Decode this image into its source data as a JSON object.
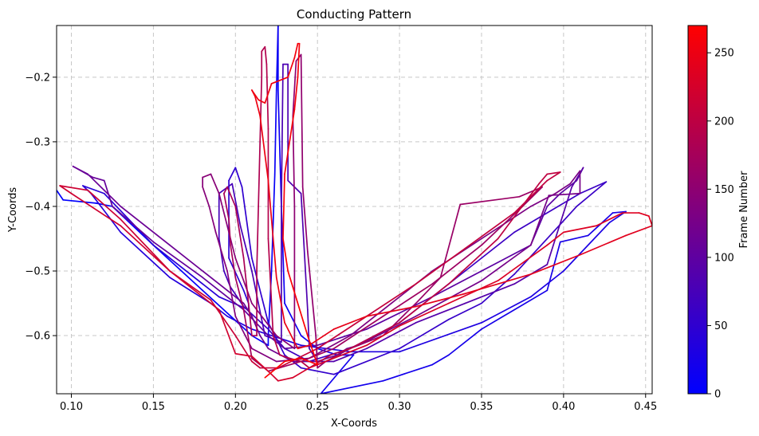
{
  "chart_data": {
    "type": "line",
    "title": "Conducting Pattern",
    "xlabel": "X-Coords",
    "ylabel": "Y-Coords",
    "xlim": [
      0.091,
      0.454
    ],
    "ylim": [
      -0.69,
      -0.12
    ],
    "xticks": [
      0.1,
      0.15,
      0.2,
      0.25,
      0.3,
      0.35,
      0.4,
      0.45
    ],
    "xtick_labels": [
      "0.10",
      "0.15",
      "0.20",
      "0.25",
      "0.30",
      "0.35",
      "0.40",
      "0.45"
    ],
    "yticks": [
      -0.2,
      -0.3,
      -0.4,
      -0.5,
      -0.6
    ],
    "ytick_labels": [
      "−0.2",
      "−0.3",
      "−0.4",
      "−0.5",
      "−0.6"
    ],
    "grid": true,
    "colorbar": {
      "label": "Frame Number",
      "range": [
        0,
        270
      ],
      "ticks": [
        0,
        50,
        100,
        150,
        200,
        250
      ],
      "tick_labels": [
        "0",
        "50",
        "100",
        "150",
        "200",
        "250"
      ],
      "color_low": "#0000ff",
      "color_high": "#ff0000"
    },
    "points": [
      [
        0.091,
        -0.375
      ],
      [
        0.095,
        -0.39
      ],
      [
        0.115,
        -0.395
      ],
      [
        0.125,
        -0.4
      ],
      [
        0.15,
        -0.46
      ],
      [
        0.18,
        -0.53
      ],
      [
        0.21,
        -0.6
      ],
      [
        0.22,
        -0.615
      ],
      [
        0.22,
        -0.6
      ],
      [
        0.222,
        -0.5
      ],
      [
        0.224,
        -0.35
      ],
      [
        0.225,
        -0.22
      ],
      [
        0.226,
        -0.12
      ],
      [
        0.226,
        -0.22
      ],
      [
        0.228,
        -0.4
      ],
      [
        0.23,
        -0.55
      ],
      [
        0.24,
        -0.6
      ],
      [
        0.25,
        -0.62
      ],
      [
        0.262,
        -0.63
      ],
      [
        0.272,
        -0.63
      ],
      [
        0.252,
        -0.69
      ],
      [
        0.29,
        -0.67
      ],
      [
        0.32,
        -0.645
      ],
      [
        0.33,
        -0.63
      ],
      [
        0.35,
        -0.59
      ],
      [
        0.39,
        -0.53
      ],
      [
        0.398,
        -0.455
      ],
      [
        0.415,
        -0.445
      ],
      [
        0.43,
        -0.41
      ],
      [
        0.438,
        -0.408
      ],
      [
        0.428,
        -0.425
      ],
      [
        0.4,
        -0.5
      ],
      [
        0.38,
        -0.54
      ],
      [
        0.35,
        -0.58
      ],
      [
        0.3,
        -0.625
      ],
      [
        0.27,
        -0.625
      ],
      [
        0.24,
        -0.615
      ],
      [
        0.21,
        -0.59
      ],
      [
        0.195,
        -0.57
      ],
      [
        0.185,
        -0.55
      ],
      [
        0.16,
        -0.51
      ],
      [
        0.13,
        -0.44
      ],
      [
        0.112,
        -0.38
      ],
      [
        0.107,
        -0.368
      ],
      [
        0.12,
        -0.38
      ],
      [
        0.15,
        -0.46
      ],
      [
        0.19,
        -0.54
      ],
      [
        0.208,
        -0.56
      ],
      [
        0.208,
        -0.55
      ],
      [
        0.205,
        -0.53
      ],
      [
        0.196,
        -0.48
      ],
      [
        0.196,
        -0.36
      ],
      [
        0.2,
        -0.34
      ],
      [
        0.204,
        -0.37
      ],
      [
        0.21,
        -0.48
      ],
      [
        0.22,
        -0.58
      ],
      [
        0.23,
        -0.63
      ],
      [
        0.24,
        -0.65
      ],
      [
        0.26,
        -0.66
      ],
      [
        0.3,
        -0.62
      ],
      [
        0.33,
        -0.575
      ],
      [
        0.35,
        -0.55
      ],
      [
        0.37,
        -0.505
      ],
      [
        0.39,
        -0.45
      ],
      [
        0.408,
        -0.4
      ],
      [
        0.426,
        -0.362
      ],
      [
        0.41,
        -0.38
      ],
      [
        0.37,
        -0.44
      ],
      [
        0.34,
        -0.5
      ],
      [
        0.3,
        -0.58
      ],
      [
        0.27,
        -0.62
      ],
      [
        0.245,
        -0.64
      ],
      [
        0.23,
        -0.62
      ],
      [
        0.22,
        -0.59
      ],
      [
        0.205,
        -0.555
      ],
      [
        0.197,
        -0.525
      ],
      [
        0.193,
        -0.5
      ],
      [
        0.19,
        -0.45
      ],
      [
        0.19,
        -0.38
      ],
      [
        0.198,
        -0.365
      ],
      [
        0.203,
        -0.43
      ],
      [
        0.21,
        -0.5
      ],
      [
        0.218,
        -0.6
      ],
      [
        0.228,
        -0.61
      ],
      [
        0.228,
        -0.4
      ],
      [
        0.229,
        -0.18
      ],
      [
        0.232,
        -0.18
      ],
      [
        0.232,
        -0.36
      ],
      [
        0.24,
        -0.38
      ],
      [
        0.244,
        -0.56
      ],
      [
        0.245,
        -0.62
      ],
      [
        0.25,
        -0.64
      ],
      [
        0.26,
        -0.64
      ],
      [
        0.28,
        -0.62
      ],
      [
        0.31,
        -0.58
      ],
      [
        0.34,
        -0.55
      ],
      [
        0.37,
        -0.52
      ],
      [
        0.39,
        -0.49
      ],
      [
        0.405,
        -0.37
      ],
      [
        0.412,
        -0.34
      ],
      [
        0.408,
        -0.36
      ],
      [
        0.398,
        -0.38
      ],
      [
        0.39,
        -0.4
      ],
      [
        0.38,
        -0.46
      ],
      [
        0.35,
        -0.5
      ],
      [
        0.32,
        -0.54
      ],
      [
        0.28,
        -0.59
      ],
      [
        0.25,
        -0.615
      ],
      [
        0.23,
        -0.62
      ],
      [
        0.22,
        -0.6
      ],
      [
        0.205,
        -0.56
      ],
      [
        0.18,
        -0.51
      ],
      [
        0.15,
        -0.455
      ],
      [
        0.125,
        -0.4
      ],
      [
        0.12,
        -0.36
      ],
      [
        0.113,
        -0.355
      ],
      [
        0.101,
        -0.338
      ],
      [
        0.11,
        -0.35
      ],
      [
        0.13,
        -0.4
      ],
      [
        0.16,
        -0.46
      ],
      [
        0.19,
        -0.52
      ],
      [
        0.205,
        -0.55
      ],
      [
        0.21,
        -0.57
      ],
      [
        0.215,
        -0.6
      ],
      [
        0.22,
        -0.62
      ],
      [
        0.235,
        -0.64
      ],
      [
        0.25,
        -0.64
      ],
      [
        0.262,
        -0.63
      ],
      [
        0.268,
        -0.62
      ],
      [
        0.275,
        -0.615
      ],
      [
        0.31,
        -0.57
      ],
      [
        0.35,
        -0.515
      ],
      [
        0.38,
        -0.46
      ],
      [
        0.391,
        -0.383
      ],
      [
        0.41,
        -0.38
      ],
      [
        0.41,
        -0.345
      ],
      [
        0.404,
        -0.365
      ],
      [
        0.395,
        -0.38
      ],
      [
        0.38,
        -0.4
      ],
      [
        0.35,
        -0.45
      ],
      [
        0.32,
        -0.5
      ],
      [
        0.295,
        -0.55
      ],
      [
        0.27,
        -0.6
      ],
      [
        0.245,
        -0.635
      ],
      [
        0.225,
        -0.64
      ],
      [
        0.21,
        -0.62
      ],
      [
        0.2,
        -0.57
      ],
      [
        0.195,
        -0.5
      ],
      [
        0.188,
        -0.44
      ],
      [
        0.184,
        -0.4
      ],
      [
        0.18,
        -0.37
      ],
      [
        0.18,
        -0.355
      ],
      [
        0.185,
        -0.35
      ],
      [
        0.19,
        -0.38
      ],
      [
        0.2,
        -0.48
      ],
      [
        0.21,
        -0.55
      ],
      [
        0.225,
        -0.6
      ],
      [
        0.236,
        -0.62
      ],
      [
        0.236,
        -0.4
      ],
      [
        0.235,
        -0.26
      ],
      [
        0.237,
        -0.175
      ],
      [
        0.24,
        -0.165
      ],
      [
        0.241,
        -0.37
      ],
      [
        0.244,
        -0.47
      ],
      [
        0.249,
        -0.6
      ],
      [
        0.25,
        -0.65
      ],
      [
        0.255,
        -0.64
      ],
      [
        0.27,
        -0.62
      ],
      [
        0.29,
        -0.6
      ],
      [
        0.31,
        -0.55
      ],
      [
        0.325,
        -0.51
      ],
      [
        0.337,
        -0.397
      ],
      [
        0.373,
        -0.385
      ],
      [
        0.387,
        -0.37
      ],
      [
        0.375,
        -0.4
      ],
      [
        0.35,
        -0.46
      ],
      [
        0.32,
        -0.52
      ],
      [
        0.29,
        -0.57
      ],
      [
        0.26,
        -0.62
      ],
      [
        0.24,
        -0.64
      ],
      [
        0.22,
        -0.655
      ],
      [
        0.21,
        -0.635
      ],
      [
        0.205,
        -0.56
      ],
      [
        0.2,
        -0.51
      ],
      [
        0.197,
        -0.46
      ],
      [
        0.196,
        -0.42
      ],
      [
        0.193,
        -0.38
      ],
      [
        0.195,
        -0.37
      ],
      [
        0.2,
        -0.4
      ],
      [
        0.205,
        -0.48
      ],
      [
        0.208,
        -0.55
      ],
      [
        0.21,
        -0.6
      ],
      [
        0.213,
        -0.6
      ],
      [
        0.213,
        -0.5
      ],
      [
        0.214,
        -0.4
      ],
      [
        0.215,
        -0.3
      ],
      [
        0.216,
        -0.2
      ],
      [
        0.216,
        -0.16
      ],
      [
        0.218,
        -0.153
      ],
      [
        0.219,
        -0.18
      ],
      [
        0.22,
        -0.28
      ],
      [
        0.22,
        -0.45
      ],
      [
        0.223,
        -0.6
      ],
      [
        0.227,
        -0.63
      ],
      [
        0.233,
        -0.635
      ],
      [
        0.24,
        -0.64
      ],
      [
        0.245,
        -0.65
      ],
      [
        0.258,
        -0.63
      ],
      [
        0.27,
        -0.62
      ],
      [
        0.3,
        -0.58
      ],
      [
        0.33,
        -0.52
      ],
      [
        0.36,
        -0.45
      ],
      [
        0.385,
        -0.365
      ],
      [
        0.39,
        -0.35
      ],
      [
        0.398,
        -0.347
      ],
      [
        0.39,
        -0.36
      ],
      [
        0.37,
        -0.41
      ],
      [
        0.34,
        -0.465
      ],
      [
        0.31,
        -0.52
      ],
      [
        0.28,
        -0.57
      ],
      [
        0.25,
        -0.62
      ],
      [
        0.226,
        -0.65
      ],
      [
        0.215,
        -0.65
      ],
      [
        0.21,
        -0.64
      ],
      [
        0.2,
        -0.6
      ],
      [
        0.185,
        -0.545
      ],
      [
        0.16,
        -0.5
      ],
      [
        0.13,
        -0.42
      ],
      [
        0.11,
        -0.375
      ],
      [
        0.093,
        -0.368
      ],
      [
        0.1,
        -0.38
      ],
      [
        0.13,
        -0.43
      ],
      [
        0.16,
        -0.5
      ],
      [
        0.19,
        -0.56
      ],
      [
        0.2,
        -0.628
      ],
      [
        0.21,
        -0.632
      ],
      [
        0.222,
        -0.66
      ],
      [
        0.226,
        -0.67
      ],
      [
        0.235,
        -0.665
      ],
      [
        0.245,
        -0.65
      ],
      [
        0.255,
        -0.64
      ],
      [
        0.28,
        -0.615
      ],
      [
        0.3,
        -0.585
      ],
      [
        0.33,
        -0.55
      ],
      [
        0.36,
        -0.515
      ],
      [
        0.39,
        -0.46
      ],
      [
        0.4,
        -0.44
      ],
      [
        0.42,
        -0.43
      ],
      [
        0.436,
        -0.41
      ],
      [
        0.446,
        -0.41
      ],
      [
        0.452,
        -0.415
      ],
      [
        0.454,
        -0.43
      ],
      [
        0.438,
        -0.445
      ],
      [
        0.41,
        -0.475
      ],
      [
        0.38,
        -0.505
      ],
      [
        0.34,
        -0.535
      ],
      [
        0.31,
        -0.555
      ],
      [
        0.28,
        -0.57
      ],
      [
        0.26,
        -0.59
      ],
      [
        0.245,
        -0.615
      ],
      [
        0.238,
        -0.62
      ],
      [
        0.23,
        -0.58
      ],
      [
        0.225,
        -0.51
      ],
      [
        0.22,
        -0.36
      ],
      [
        0.215,
        -0.26
      ],
      [
        0.212,
        -0.23
      ],
      [
        0.21,
        -0.22
      ],
      [
        0.214,
        -0.235
      ],
      [
        0.218,
        -0.24
      ],
      [
        0.222,
        -0.21
      ],
      [
        0.232,
        -0.2
      ],
      [
        0.236,
        -0.17
      ],
      [
        0.238,
        -0.148
      ],
      [
        0.239,
        -0.148
      ],
      [
        0.238,
        -0.2
      ],
      [
        0.236,
        -0.25
      ],
      [
        0.23,
        -0.35
      ],
      [
        0.229,
        -0.45
      ],
      [
        0.232,
        -0.5
      ],
      [
        0.244,
        -0.6
      ],
      [
        0.248,
        -0.63
      ],
      [
        0.25,
        -0.645
      ],
      [
        0.24,
        -0.635
      ],
      [
        0.23,
        -0.64
      ],
      [
        0.218,
        -0.665
      ]
    ]
  }
}
